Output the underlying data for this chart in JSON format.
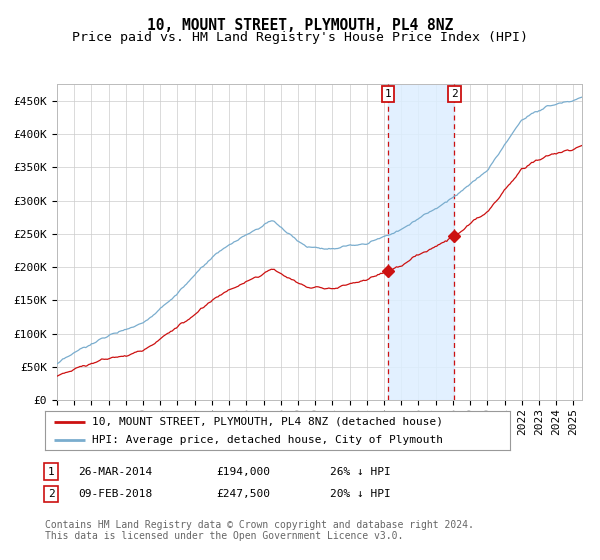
{
  "title": "10, MOUNT STREET, PLYMOUTH, PL4 8NZ",
  "subtitle": "Price paid vs. HM Land Registry's House Price Index (HPI)",
  "ylim": [
    0,
    475000
  ],
  "yticks": [
    0,
    50000,
    100000,
    150000,
    200000,
    250000,
    300000,
    350000,
    400000,
    450000
  ],
  "ytick_labels": [
    "£0",
    "£50K",
    "£100K",
    "£150K",
    "£200K",
    "£250K",
    "£300K",
    "£350K",
    "£400K",
    "£450K"
  ],
  "xlim_start": 1995.0,
  "xlim_end": 2025.5,
  "sale1_date": 2014.23,
  "sale1_price": 194000,
  "sale1_label": "1",
  "sale2_date": 2018.09,
  "sale2_price": 247500,
  "sale2_label": "2",
  "hpi_color": "#7aadce",
  "price_color": "#cc1111",
  "shade_color": "#ddeeff",
  "dashed_line_color": "#cc1111",
  "grid_color": "#cccccc",
  "background_color": "#ffffff",
  "legend_entry1": "10, MOUNT STREET, PLYMOUTH, PL4 8NZ (detached house)",
  "legend_entry2": "HPI: Average price, detached house, City of Plymouth",
  "table_row1_num": "1",
  "table_row1_date": "26-MAR-2014",
  "table_row1_price": "£194,000",
  "table_row1_hpi": "26% ↓ HPI",
  "table_row2_num": "2",
  "table_row2_date": "09-FEB-2018",
  "table_row2_price": "£247,500",
  "table_row2_hpi": "20% ↓ HPI",
  "footnote": "Contains HM Land Registry data © Crown copyright and database right 2024.\nThis data is licensed under the Open Government Licence v3.0.",
  "title_fontsize": 10.5,
  "subtitle_fontsize": 9.5,
  "tick_fontsize": 8,
  "legend_fontsize": 8,
  "table_fontsize": 8,
  "footnote_fontsize": 7
}
